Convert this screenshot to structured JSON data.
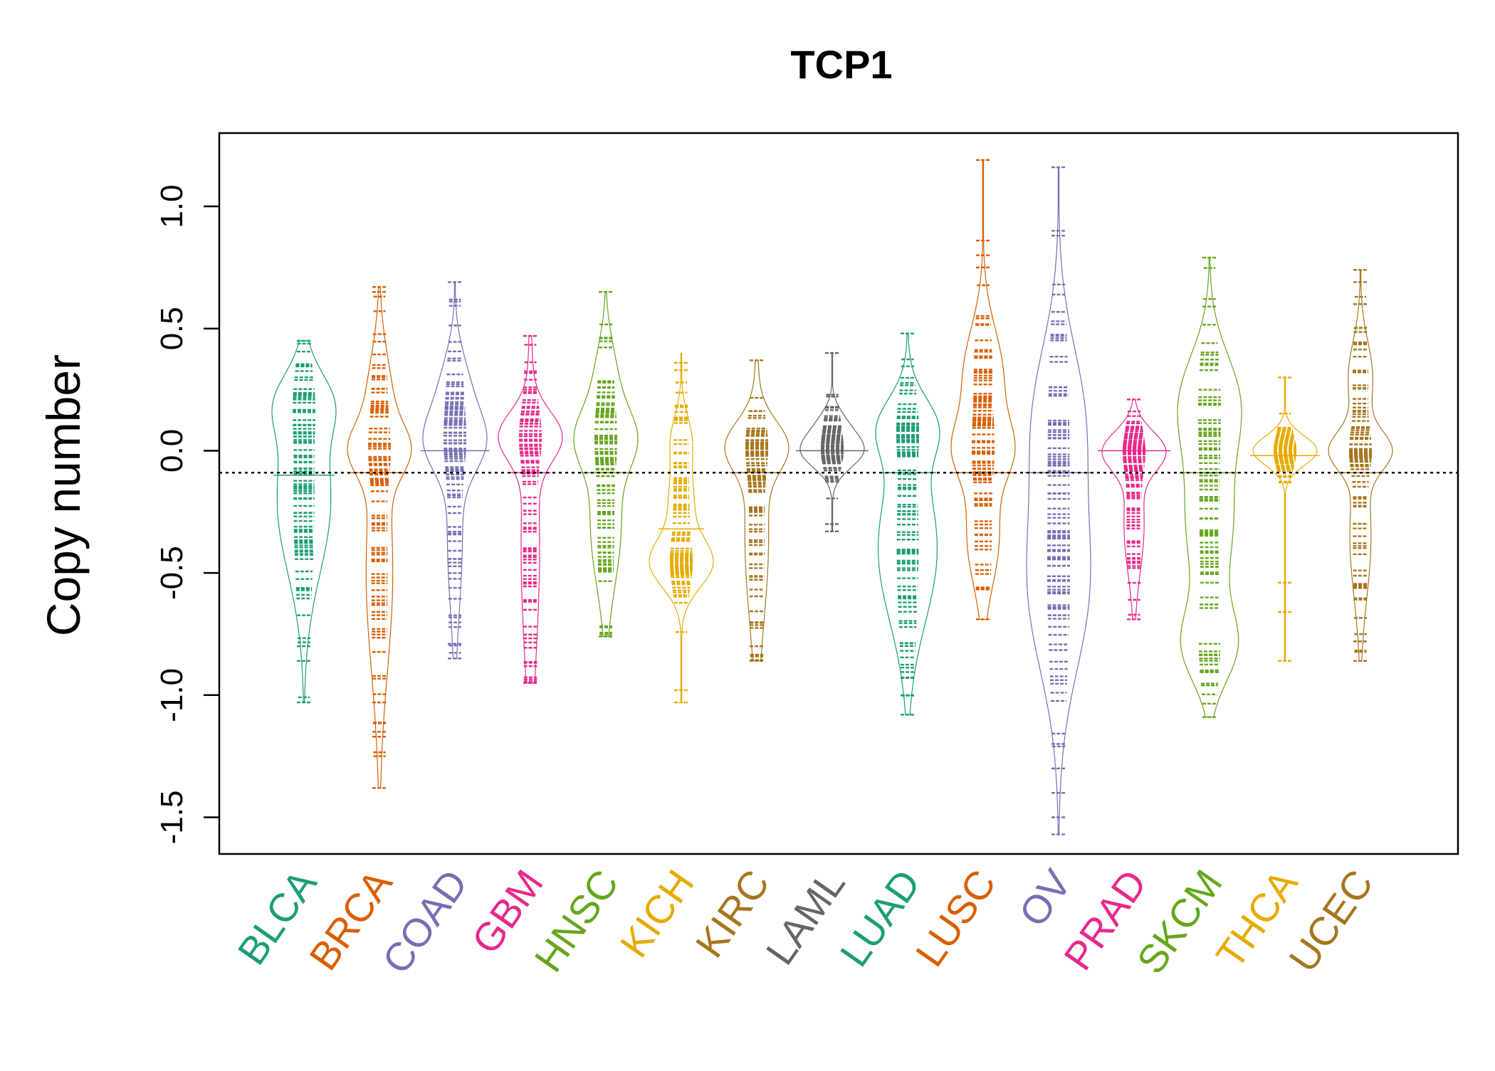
{
  "chart_data": {
    "type": "beanplot",
    "title": "TCP1",
    "xlabel": "",
    "ylabel": "Copy number",
    "ylim": [
      -1.65,
      1.3
    ],
    "yticks": [
      -1.5,
      -1.0,
      -0.5,
      0.0,
      0.5,
      1.0
    ],
    "ytick_labels": [
      "-1.5",
      "-1.0",
      "-0.5",
      "0.0",
      "0.5",
      "1.0"
    ],
    "reference_line": -0.09,
    "grid": false,
    "legend": "none",
    "categories": [
      "BLCA",
      "BRCA",
      "COAD",
      "GBM",
      "HNSC",
      "KICH",
      "KIRC",
      "LAML",
      "LUAD",
      "LUSC",
      "OV",
      "PRAD",
      "SKCM",
      "THCA",
      "UCEC"
    ],
    "colors": [
      "#1B9E77",
      "#D95F02",
      "#7570B3",
      "#E7298A",
      "#66A61E",
      "#E6AB02",
      "#A6761D",
      "#666666",
      "#1B9E77",
      "#D95F02",
      "#7570B3",
      "#E7298A",
      "#66A61E",
      "#E6AB02",
      "#A6761D"
    ],
    "series": [
      {
        "category": "BLCA",
        "mean": -0.1,
        "min": -1.03,
        "max": 0.45,
        "modes": [
          [
            0.2,
            0.3,
            0.12
          ],
          [
            -0.2,
            0.4,
            0.3
          ]
        ],
        "sparse": [
          -1.03,
          -0.86,
          -0.8,
          0.45
        ]
      },
      {
        "category": "BRCA",
        "mean": -0.09,
        "min": -1.38,
        "max": 0.67,
        "modes": [
          [
            0.0,
            0.8,
            0.1
          ],
          [
            0.2,
            0.45,
            0.2
          ],
          [
            -0.5,
            0.55,
            0.4
          ]
        ],
        "sparse": [
          -1.38,
          -1.17,
          -1.15,
          -1.03,
          0.67,
          0.65
        ]
      },
      {
        "category": "COAD",
        "mean": 0.0,
        "min": -0.85,
        "max": 0.69,
        "modes": [
          [
            0.03,
            0.8,
            0.12
          ],
          [
            0.25,
            0.45,
            0.15
          ],
          [
            -0.35,
            0.25,
            0.3
          ]
        ],
        "sparse": [
          -0.85,
          -0.79,
          0.69
        ]
      },
      {
        "category": "GBM",
        "mean": -0.09,
        "min": -0.95,
        "max": 0.47,
        "modes": [
          [
            0.06,
            1.0,
            0.1
          ],
          [
            -0.4,
            0.35,
            0.45
          ]
        ],
        "sparse": [
          -0.95,
          0.47
        ]
      },
      {
        "category": "HNSC",
        "mean": -0.09,
        "min": -0.76,
        "max": 0.65,
        "modes": [
          [
            0.05,
            0.7,
            0.12
          ],
          [
            0.3,
            0.3,
            0.15
          ],
          [
            -0.3,
            0.45,
            0.25
          ]
        ],
        "sparse": [
          -0.76,
          0.65
        ]
      },
      {
        "category": "KICH",
        "mean": -0.32,
        "min": -1.03,
        "max": 0.4,
        "modes": [
          [
            -0.46,
            0.8,
            0.1
          ],
          [
            -0.2,
            0.3,
            0.12
          ],
          [
            0.05,
            0.25,
            0.1
          ]
        ],
        "sparse": [
          -1.03,
          -0.98,
          0.36,
          0.33
        ]
      },
      {
        "category": "KIRC",
        "mean": -0.09,
        "min": -0.86,
        "max": 0.37,
        "modes": [
          [
            0.02,
            0.85,
            0.1
          ],
          [
            -0.35,
            0.4,
            0.35
          ]
        ],
        "sparse": [
          -0.86,
          -0.8,
          0.37
        ]
      },
      {
        "category": "LAML",
        "mean": 0.0,
        "min": -0.33,
        "max": 0.4,
        "modes": [
          [
            0.0,
            1.0,
            0.07
          ],
          [
            0.12,
            0.3,
            0.06
          ]
        ],
        "sparse": [
          -0.33,
          -0.3,
          0.4
        ]
      },
      {
        "category": "LUAD",
        "mean": -0.09,
        "min": -1.08,
        "max": 0.48,
        "modes": [
          [
            0.1,
            0.45,
            0.12
          ],
          [
            -0.4,
            0.55,
            0.3
          ]
        ],
        "sparse": [
          -1.08,
          -1.0,
          -0.93,
          0.48
        ]
      },
      {
        "category": "LUSC",
        "mean": -0.09,
        "min": -0.69,
        "max": 1.19,
        "modes": [
          [
            0.3,
            0.5,
            0.2
          ],
          [
            0.0,
            0.55,
            0.12
          ],
          [
            -0.35,
            0.4,
            0.2
          ]
        ],
        "sparse": [
          -0.69,
          0.86,
          0.8,
          0.75,
          1.19
        ]
      },
      {
        "category": "OV",
        "mean": -0.09,
        "min": -1.57,
        "max": 1.16,
        "modes": [
          [
            0.15,
            0.5,
            0.3
          ],
          [
            -0.55,
            0.65,
            0.35
          ]
        ],
        "sparse": [
          -1.57,
          -1.5,
          -1.4,
          -1.3,
          -1.2,
          0.9,
          0.88,
          1.16
        ]
      },
      {
        "category": "PRAD",
        "mean": 0.0,
        "min": -0.69,
        "max": 0.21,
        "modes": [
          [
            0.0,
            1.0,
            0.08
          ],
          [
            -0.3,
            0.35,
            0.2
          ]
        ],
        "sparse": [
          -0.69,
          0.21
        ]
      },
      {
        "category": "SKCM",
        "mean": -0.09,
        "min": -1.09,
        "max": 0.79,
        "modes": [
          [
            0.2,
            0.5,
            0.2
          ],
          [
            -0.3,
            0.4,
            0.25
          ],
          [
            -0.8,
            0.45,
            0.15
          ]
        ],
        "sparse": [
          -1.09,
          0.79,
          0.59
        ]
      },
      {
        "category": "THCA",
        "mean": -0.02,
        "min": -0.86,
        "max": 0.3,
        "modes": [
          [
            0.0,
            1.0,
            0.06
          ]
        ],
        "sparse": [
          -0.86,
          -0.66,
          -0.54,
          0.3
        ]
      },
      {
        "category": "UCEC",
        "mean": -0.09,
        "min": -0.86,
        "max": 0.74,
        "modes": [
          [
            0.0,
            1.0,
            0.08
          ],
          [
            0.3,
            0.45,
            0.15
          ],
          [
            -0.35,
            0.4,
            0.25
          ]
        ],
        "sparse": [
          -0.86,
          -0.78,
          0.74,
          0.69,
          0.6
        ]
      }
    ]
  }
}
